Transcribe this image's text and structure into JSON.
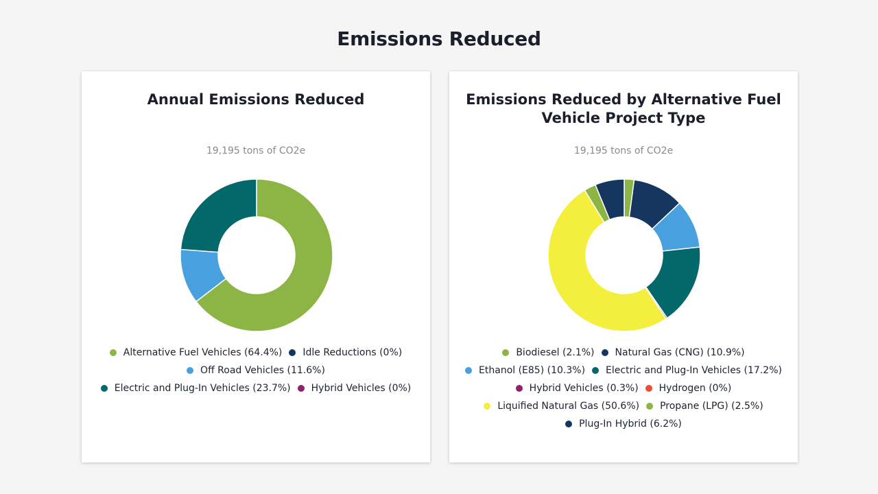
{
  "page": {
    "title": "Emissions Reduced"
  },
  "chart_data": [
    {
      "type": "pie",
      "donut": true,
      "title": "Annual Emissions Reduced",
      "subtitle": "19,195 tons of CO2e",
      "series": [
        {
          "name": "Alternative Fuel Vehicles",
          "value": 64.4,
          "label": "Alternative Fuel Vehicles (64.4%)",
          "color": "#8db545"
        },
        {
          "name": "Idle Reductions",
          "value": 0,
          "label": "Idle Reductions (0%)",
          "color": "#15365e"
        },
        {
          "name": "Off Road Vehicles",
          "value": 11.6,
          "label": "Off Road Vehicles (11.6%)",
          "color": "#48a0de"
        },
        {
          "name": "Electric and Plug-In Vehicles",
          "value": 23.7,
          "label": "Electric and Plug-In Vehicles (23.7%)",
          "color": "#02686a"
        },
        {
          "name": "Hybrid Vehicles",
          "value": 0,
          "label": "Hybrid Vehicles (0%)",
          "color": "#8e226b"
        }
      ],
      "legend_rows": [
        [
          0,
          1
        ],
        [
          2
        ],
        [
          3,
          4
        ]
      ]
    },
    {
      "type": "pie",
      "donut": true,
      "title": "Emissions Reduced by Alternative Fuel Vehicle Project Type",
      "subtitle": "19,195 tons of CO2e",
      "series": [
        {
          "name": "Biodiesel",
          "value": 2.1,
          "label": "Biodiesel (2.1%)",
          "color": "#8db545"
        },
        {
          "name": "Natural Gas (CNG)",
          "value": 10.9,
          "label": "Natural Gas (CNG) (10.9%)",
          "color": "#15365e"
        },
        {
          "name": "Ethanol (E85)",
          "value": 10.3,
          "label": "Ethanol (E85) (10.3%)",
          "color": "#48a0de"
        },
        {
          "name": "Electric and Plug-In Vehicles",
          "value": 17.2,
          "label": "Electric and Plug-In Vehicles (17.2%)",
          "color": "#02686a"
        },
        {
          "name": "Hybrid Vehicles",
          "value": 0.3,
          "label": "Hybrid Vehicles (0.3%)",
          "color": "#8e226b"
        },
        {
          "name": "Hydrogen",
          "value": 0,
          "label": "Hydrogen (0%)",
          "color": "#ef4d2d"
        },
        {
          "name": "Liquified Natural Gas",
          "value": 50.6,
          "label": "Liquified Natural Gas (50.6%)",
          "color": "#f4ef3c"
        },
        {
          "name": "Propane (LPG)",
          "value": 2.5,
          "label": "Propane (LPG) (2.5%)",
          "color": "#8db545"
        },
        {
          "name": "Plug-In Hybrid",
          "value": 6.2,
          "label": "Plug-In Hybrid (6.2%)",
          "color": "#15365e"
        }
      ],
      "legend_rows": [
        [
          0,
          1
        ],
        [
          2,
          3
        ],
        [
          4,
          5
        ],
        [
          6,
          7
        ],
        [
          8
        ]
      ]
    }
  ]
}
